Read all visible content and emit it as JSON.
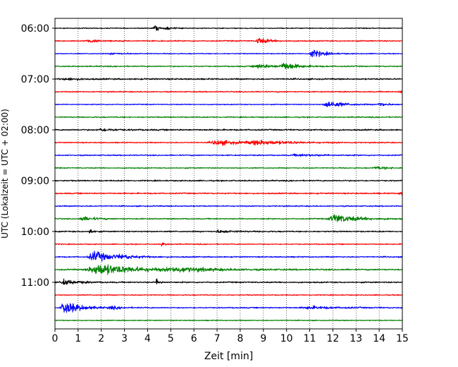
{
  "chart_data": {
    "type": "line",
    "title": "",
    "xlabel": "Zeit  [min]",
    "ylabel": "UTC (Lokalzeit = UTC + 02:00)",
    "xlim": [
      0,
      15
    ],
    "x_ticks": [
      0,
      1,
      2,
      3,
      4,
      5,
      6,
      7,
      8,
      9,
      10,
      11,
      12,
      13,
      14,
      15
    ],
    "x_tick_labels": [
      "0",
      "1",
      "2",
      "3",
      "4",
      "5",
      "6",
      "7",
      "8",
      "9",
      "10",
      "11",
      "12",
      "13",
      "14",
      "15"
    ],
    "grid": "vertical dotted at each minute",
    "trace_interval_min": 15,
    "y_tick_labels": [
      "06:00",
      "07:00",
      "08:00",
      "09:00",
      "10:00",
      "11:00"
    ],
    "colors": [
      "#000000",
      "#ff0000",
      "#0000ff",
      "#008000"
    ],
    "traces": [
      {
        "start": "06:00",
        "color": "#000000",
        "noise": 0.35,
        "events": [
          {
            "t": 4.3,
            "amp": 3.0,
            "dur": 0.15
          },
          {
            "t": 4.8,
            "amp": 1.0,
            "dur": 0.3
          }
        ]
      },
      {
        "start": "06:15",
        "color": "#ff0000",
        "noise": 0.45,
        "events": [
          {
            "t": 1.5,
            "amp": 1.0,
            "dur": 0.6
          },
          {
            "t": 8.8,
            "amp": 2.5,
            "dur": 0.4
          }
        ]
      },
      {
        "start": "06:30",
        "color": "#0000ff",
        "noise": 0.35,
        "events": [
          {
            "t": 11.1,
            "amp": 3.2,
            "dur": 0.5
          },
          {
            "t": 2.5,
            "amp": 0.7,
            "dur": 0.5
          }
        ]
      },
      {
        "start": "06:45",
        "color": "#008000",
        "noise": 0.45,
        "events": [
          {
            "t": 8.8,
            "amp": 1.6,
            "dur": 0.8
          },
          {
            "t": 9.9,
            "amp": 3.0,
            "dur": 0.5
          }
        ]
      },
      {
        "start": "07:00",
        "color": "#000000",
        "noise": 0.55,
        "events": [
          {
            "t": 0.5,
            "amp": 0.8,
            "dur": 0.6
          }
        ]
      },
      {
        "start": "07:15",
        "color": "#ff0000",
        "noise": 0.45,
        "events": [
          {
            "t": 14.9,
            "amp": 1.6,
            "dur": 0.2
          }
        ]
      },
      {
        "start": "07:30",
        "color": "#0000ff",
        "noise": 0.35,
        "events": [
          {
            "t": 11.8,
            "amp": 3.0,
            "dur": 0.6
          },
          {
            "t": 14.0,
            "amp": 1.8,
            "dur": 0.3
          }
        ]
      },
      {
        "start": "07:45",
        "color": "#008000",
        "noise": 0.45,
        "events": []
      },
      {
        "start": "08:00",
        "color": "#000000",
        "noise": 0.55,
        "events": [
          {
            "t": 2.0,
            "amp": 1.0,
            "dur": 0.6
          }
        ]
      },
      {
        "start": "08:15",
        "color": "#ff0000",
        "noise": 0.4,
        "events": [
          {
            "t": 7.0,
            "amp": 2.0,
            "dur": 1.0
          },
          {
            "t": 8.8,
            "amp": 1.6,
            "dur": 1.5
          }
        ]
      },
      {
        "start": "08:30",
        "color": "#0000ff",
        "noise": 0.45,
        "events": [
          {
            "t": 10.5,
            "amp": 0.8,
            "dur": 1.0
          }
        ]
      },
      {
        "start": "08:45",
        "color": "#008000",
        "noise": 0.4,
        "events": [
          {
            "t": 13.9,
            "amp": 1.0,
            "dur": 0.6
          }
        ]
      },
      {
        "start": "09:00",
        "color": "#000000",
        "noise": 0.5,
        "events": []
      },
      {
        "start": "09:15",
        "color": "#ff0000",
        "noise": 0.5,
        "events": [
          {
            "t": 14.9,
            "amp": 1.4,
            "dur": 0.2
          }
        ]
      },
      {
        "start": "09:30",
        "color": "#0000ff",
        "noise": 0.45,
        "events": []
      },
      {
        "start": "09:45",
        "color": "#008000",
        "noise": 0.45,
        "events": [
          {
            "t": 1.2,
            "amp": 1.6,
            "dur": 0.5
          },
          {
            "t": 12.1,
            "amp": 3.4,
            "dur": 0.9
          }
        ]
      },
      {
        "start": "10:00",
        "color": "#000000",
        "noise": 0.5,
        "events": [
          {
            "t": 1.5,
            "amp": 2.8,
            "dur": 0.12
          },
          {
            "t": 7.1,
            "amp": 1.0,
            "dur": 0.6
          }
        ]
      },
      {
        "start": "10:15",
        "color": "#ff0000",
        "noise": 0.4,
        "events": [
          {
            "t": 4.6,
            "amp": 1.4,
            "dur": 0.15
          }
        ]
      },
      {
        "start": "10:30",
        "color": "#0000ff",
        "noise": 0.45,
        "events": [
          {
            "t": 1.7,
            "amp": 4.0,
            "dur": 0.8
          },
          {
            "t": 2.9,
            "amp": 1.0,
            "dur": 0.6
          }
        ]
      },
      {
        "start": "10:45",
        "color": "#008000",
        "noise": 0.55,
        "events": [
          {
            "t": 1.9,
            "amp": 4.4,
            "dur": 1.6
          },
          {
            "t": 5.3,
            "amp": 1.5,
            "dur": 1.6
          }
        ]
      },
      {
        "start": "11:00",
        "color": "#000000",
        "noise": 0.5,
        "events": [
          {
            "t": 0.4,
            "amp": 2.0,
            "dur": 0.6
          },
          {
            "t": 4.4,
            "amp": 3.2,
            "dur": 0.12
          }
        ]
      },
      {
        "start": "11:15",
        "color": "#ff0000",
        "noise": 0.4,
        "events": []
      },
      {
        "start": "11:30",
        "color": "#0000ff",
        "noise": 0.45,
        "events": [
          {
            "t": 0.45,
            "amp": 5.5,
            "dur": 0.6
          },
          {
            "t": 2.4,
            "amp": 1.0,
            "dur": 0.4
          },
          {
            "t": 11.0,
            "amp": 1.0,
            "dur": 1.2
          }
        ]
      },
      {
        "start": "11:45",
        "color": "#008000",
        "noise": 0.35,
        "events": []
      }
    ]
  }
}
